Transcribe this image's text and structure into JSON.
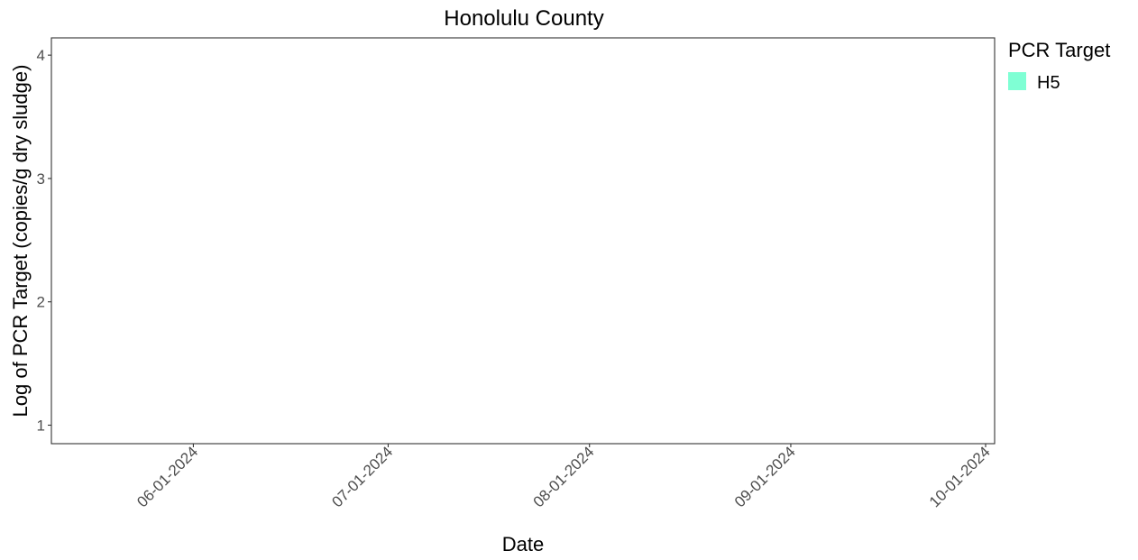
{
  "chart_data": {
    "type": "line",
    "title": "Honolulu County",
    "xlabel": "Date",
    "ylabel": "Log of PCR Target (copies/g dry sludge)",
    "x_ticks": [
      "06-01-2024",
      "07-01-2024",
      "08-01-2024",
      "09-01-2024",
      "10-01-2024"
    ],
    "y_ticks": [
      1,
      2,
      3,
      4
    ],
    "xlim": [
      "05-15-2024",
      "10-01-2024"
    ],
    "ylim": [
      0.85,
      4.14
    ],
    "grid": false,
    "legend": {
      "title": "PCR Target",
      "position": "right",
      "entries": [
        {
          "label": "H5",
          "color": "#7fffd4"
        }
      ]
    },
    "series": [
      {
        "name": "H5",
        "color": "#7fffd4",
        "x": [],
        "y": []
      }
    ]
  }
}
